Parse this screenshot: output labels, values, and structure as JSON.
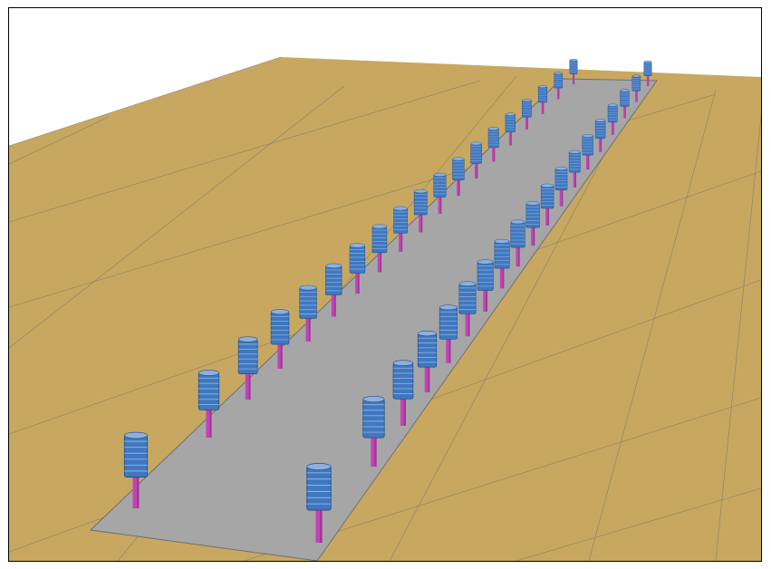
{
  "scene": {
    "description_name": "3d-render-viewport",
    "colors": {
      "sky": "#ffffff",
      "ground": "#c8a860",
      "ground_grid": "#6f6f6f",
      "slab": "#a6a6a6",
      "slab_edge": "#6e6e6e",
      "post": "#c243b5",
      "post_dark": "#8e2c85",
      "spring": "#3f78c0",
      "spring_light": "#8fb0dd",
      "spring_dark": "#1f4f8c"
    },
    "rows": {
      "left_row_count": 19,
      "right_row_count": 19
    }
  }
}
